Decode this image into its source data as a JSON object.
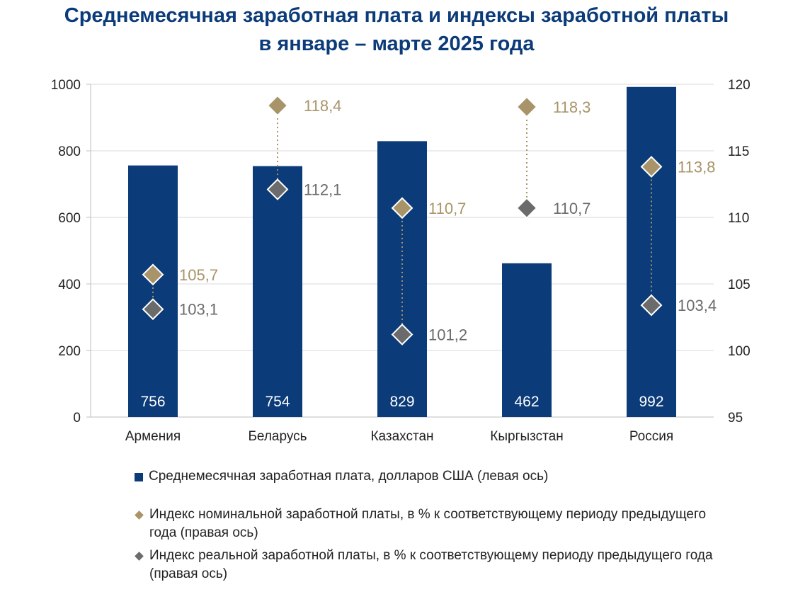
{
  "title_line1": "Среднемесячная заработная плата и индексы заработной платы",
  "title_line2": "в январе – марте 2025 года",
  "colors": {
    "bar": "#0b3b78",
    "nominal": "#a89468",
    "real": "#6b6b6b",
    "connector": "#a89468",
    "grid": "#d9d9d9",
    "title": "#0b3b78"
  },
  "chart_data": {
    "type": "bar",
    "categories": [
      "Армения",
      "Беларусь",
      "Казахстан",
      "Кыргызстан",
      "Россия"
    ],
    "series": [
      {
        "name": "Среднемесячная заработная плата, долларов США (левая ось)",
        "axis": "left",
        "kind": "bar",
        "values": [
          756,
          754,
          829,
          462,
          992
        ],
        "labels": [
          "756",
          "754",
          "829",
          "462",
          "992"
        ]
      },
      {
        "name": "Индекс номинальной заработной платы, в % к соответствующему периоду предыдущего года (правая ось)",
        "axis": "right",
        "kind": "diamond",
        "values": [
          105.7,
          118.4,
          110.7,
          118.3,
          113.8
        ],
        "labels": [
          "105,7",
          "118,4",
          "110,7",
          "118,3",
          "113,8"
        ]
      },
      {
        "name": "Индекс реальной заработной платы, в % к соответствующему периоду предыдущего года (правая ось)",
        "axis": "right",
        "kind": "diamond",
        "values": [
          103.1,
          112.1,
          101.2,
          110.7,
          103.4
        ],
        "labels": [
          "103,1",
          "112,1",
          "101,2",
          "110,7",
          "103,4"
        ]
      }
    ],
    "left_axis": {
      "ylim": [
        0,
        1000
      ],
      "ticks": [
        "0",
        "200",
        "400",
        "600",
        "800",
        "1000"
      ]
    },
    "right_axis": {
      "ylim": [
        95,
        120
      ],
      "ticks": [
        "95",
        "100",
        "105",
        "110",
        "115",
        "120"
      ]
    },
    "grid": true,
    "legend_position": "bottom"
  },
  "legend": [
    "Среднемесячная заработная плата, долларов США (левая ось)",
    "Индекс номинальной заработной платы, в % к соответствующему периоду предыдущего года (правая ось)",
    "Индекс реальной заработной платы, в % к соответствующему периоду предыдущего года (правая ось)"
  ]
}
